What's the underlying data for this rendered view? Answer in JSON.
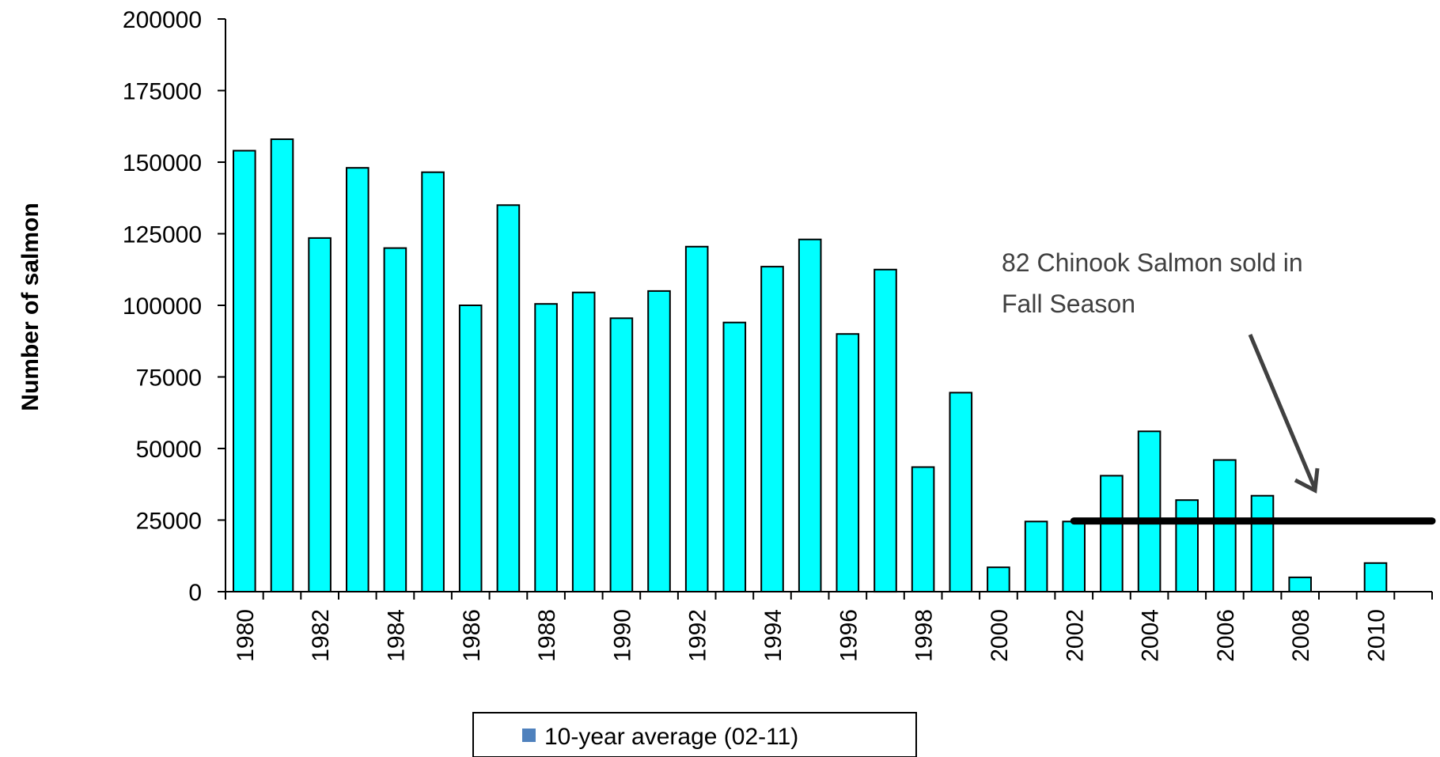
{
  "chart_data": {
    "type": "bar",
    "title": "",
    "xlabel": "",
    "ylabel": "Number of salmon",
    "ylim": [
      0,
      200000
    ],
    "yticks": [
      0,
      25000,
      50000,
      75000,
      100000,
      125000,
      150000,
      175000,
      200000
    ],
    "categories": [
      1980,
      1981,
      1982,
      1983,
      1984,
      1985,
      1986,
      1987,
      1988,
      1989,
      1990,
      1991,
      1992,
      1993,
      1994,
      1995,
      1996,
      1997,
      1998,
      1999,
      2000,
      2001,
      2002,
      2003,
      2004,
      2005,
      2006,
      2007,
      2008,
      2009,
      2010,
      2011
    ],
    "xtick_labels": [
      "1980",
      "1982",
      "1984",
      "1986",
      "1988",
      "1990",
      "1992",
      "1994",
      "1996",
      "1998",
      "2000",
      "2002",
      "2004",
      "2006",
      "2008",
      "2010"
    ],
    "series": [
      {
        "color": "#00FFFF",
        "values": [
          154000,
          158000,
          123500,
          148000,
          120000,
          146500,
          100000,
          135000,
          100500,
          104500,
          95500,
          105000,
          120500,
          94000,
          113500,
          123000,
          90000,
          112500,
          43500,
          69500,
          8500,
          24500,
          24500,
          40500,
          56000,
          32000,
          46000,
          33500,
          5000,
          0,
          10000,
          0
        ]
      }
    ],
    "average_line": {
      "name": "10-year average (02-11)",
      "value": 24700,
      "from": 2002,
      "to": 2011,
      "color": "#000000"
    },
    "legend": {
      "position": "bottom-center",
      "entries": [
        {
          "label": "10-year average (02-11)",
          "color": "#4F81BD"
        }
      ]
    },
    "annotation": {
      "text_lines": [
        "82 Chinook Salmon sold in",
        "Fall Season"
      ],
      "points_to": 2008,
      "color": "#404040"
    },
    "grid": false
  }
}
